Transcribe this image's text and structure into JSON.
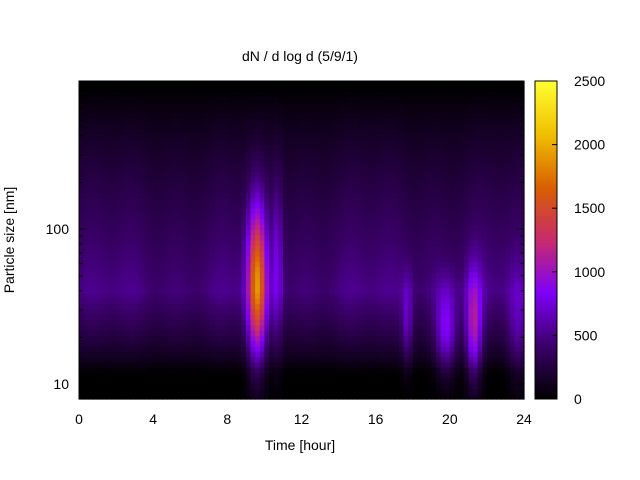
{
  "chart_data": {
    "type": "heatmap",
    "title": "dN / d log d (5/9/1)",
    "xlabel": "Time [hour]",
    "ylabel": "Particle size [nm]",
    "x_range": [
      0,
      24
    ],
    "x_ticks": [
      0,
      4,
      8,
      12,
      16,
      20,
      24
    ],
    "y_scale": "log",
    "y_range": [
      8,
      900
    ],
    "y_ticks": [
      10,
      100
    ],
    "colorbar": {
      "range": [
        0,
        2500
      ],
      "ticks": [
        0,
        500,
        1000,
        1500,
        2000,
        2500
      ],
      "palette": [
        "#000000",
        "#3a0068",
        "#7f00f8",
        "#c82b6b",
        "#d86000",
        "#f0c000",
        "#ffff33"
      ]
    },
    "background_level": 350,
    "size_profile": {
      "peak_nm": 40,
      "peak_level": 520,
      "low_nm": 12,
      "high_nm": 800
    },
    "events": [
      {
        "time_hour": 9.6,
        "size_nm": 45,
        "level": 1700,
        "width_hour": 0.35,
        "size_spread_decades": 0.35
      },
      {
        "time_hour": 10.7,
        "size_nm": 60,
        "level": 700,
        "width_hour": 0.2,
        "size_spread_decades": 0.4
      },
      {
        "time_hour": 17.7,
        "size_nm": 25,
        "level": 700,
        "width_hour": 0.2,
        "size_spread_decades": 0.2
      },
      {
        "time_hour": 19.8,
        "size_nm": 22,
        "level": 900,
        "width_hour": 0.4,
        "size_spread_decades": 0.2
      },
      {
        "time_hour": 21.3,
        "size_nm": 23,
        "level": 1100,
        "width_hour": 0.3,
        "size_spread_decades": 0.25
      },
      {
        "time_hour": 23.7,
        "size_nm": 22,
        "level": 600,
        "width_hour": 0.4,
        "size_spread_decades": 0.25
      }
    ],
    "grid": false,
    "legend": "colorbar-right"
  }
}
